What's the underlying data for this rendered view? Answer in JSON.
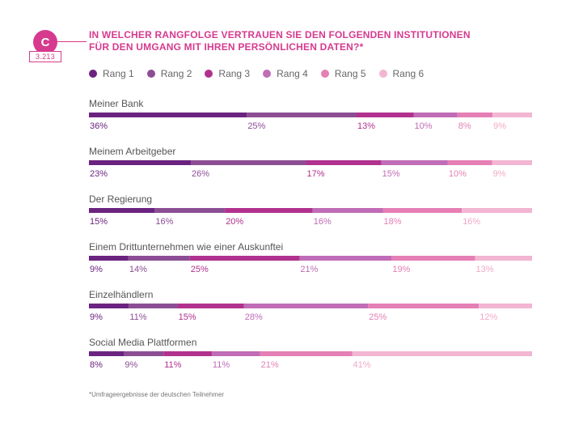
{
  "badge": {
    "letter": "C",
    "count": "3.213"
  },
  "chart_data": {
    "type": "bar",
    "orientation": "horizontal-stacked-100",
    "title": "IN WELCHER RANGFOLGE VERTRAUEN SIE DEN FOLGENDEN INSTITUTIONEN FÜR DEN UMGANG MIT IHREN PERSÖNLICHEN DATEN?*",
    "categories": [
      "Meiner Bank",
      "Meinem Arbeitgeber",
      "Der Regierung",
      "Einem Drittunternehmen wie einer Auskunftei",
      "Einzelhändlern",
      "Social Media Plattformen"
    ],
    "series": [
      {
        "name": "Rang 1",
        "color": "#6b2380",
        "values": [
          36,
          23,
          15,
          9,
          9,
          8
        ]
      },
      {
        "name": "Rang 2",
        "color": "#8b4e94",
        "values": [
          25,
          26,
          16,
          14,
          11,
          9
        ]
      },
      {
        "name": "Rang 3",
        "color": "#b1318e",
        "values": [
          13,
          17,
          20,
          25,
          15,
          11
        ]
      },
      {
        "name": "Rang 4",
        "color": "#c06cb6",
        "values": [
          10,
          15,
          16,
          21,
          28,
          11
        ]
      },
      {
        "name": "Rang 5",
        "color": "#e57fb5",
        "values": [
          8,
          10,
          18,
          19,
          25,
          21
        ]
      },
      {
        "name": "Rang 6",
        "color": "#f2b5d2",
        "values": [
          9,
          9,
          16,
          13,
          12,
          41
        ]
      }
    ],
    "labels": [
      [
        "36%",
        "25%",
        "13%",
        "10%",
        "8%",
        "9%"
      ],
      [
        "23%",
        "26%",
        "17%",
        "15%",
        "10%",
        "9%"
      ],
      [
        "15%",
        "16%",
        "20%",
        "16%",
        "18%",
        "16%"
      ],
      [
        "9%",
        "14%",
        "25%",
        "21%",
        "19%",
        "13%"
      ],
      [
        "9%",
        "11%",
        "15%",
        "28%",
        "25%",
        "12%"
      ],
      [
        "8%",
        "9%",
        "11%",
        "11%",
        "21%",
        "41%"
      ]
    ],
    "legend_position": "top",
    "grid": false
  },
  "footnote": "*Umfrageergebnisse der deutschen Teilnehmer"
}
